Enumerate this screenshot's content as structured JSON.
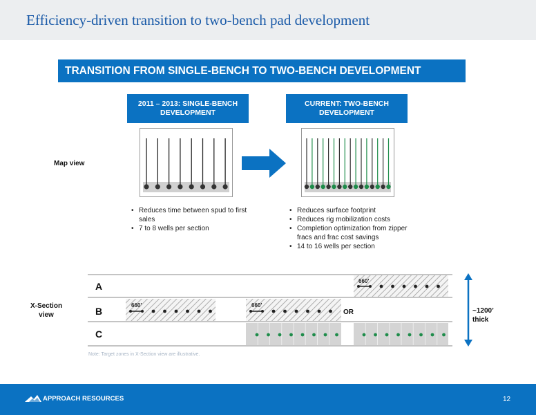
{
  "slide": {
    "title": "Efficiency-driven transition to two-bench pad development",
    "banner": "TRANSITION FROM SINGLE-BENCH TO TWO-BENCH DEVELOPMENT",
    "page_number": "12"
  },
  "columns": {
    "left": {
      "heading_line1": "2011 – 2013: SINGLE-BENCH",
      "heading_line2": "DEVELOPMENT",
      "bullets": [
        "Reduces time between spud to first sales",
        "7 to 8 wells per section"
      ]
    },
    "right": {
      "heading_line1": "CURRENT:  TWO-BENCH",
      "heading_line2": "DEVELOPMENT",
      "bullets": [
        "Reduces surface footprint",
        "Reduces rig mobilization costs",
        "Completion optimization from zipper fracs and frac cost savings",
        "14 to 16 wells per section"
      ]
    }
  },
  "labels": {
    "map_view": "Map view",
    "xsection_line1": "X-Section",
    "xsection_line2": "view",
    "bench_a": "A",
    "bench_b": "B",
    "bench_c": "C",
    "or": "OR",
    "spacing": "660’",
    "thickness": "~1200’\nthick"
  },
  "note": "Note: Target zones in X-Section view are illustrative.",
  "footer": {
    "company": "APPROACH RESOURCES"
  },
  "colors": {
    "accent_blue": "#0b72c2",
    "title_blue": "#1a5aa8",
    "well_green": "#1e8c4a",
    "well_dark": "#333333",
    "pad_gray": "#d4d4d4"
  }
}
